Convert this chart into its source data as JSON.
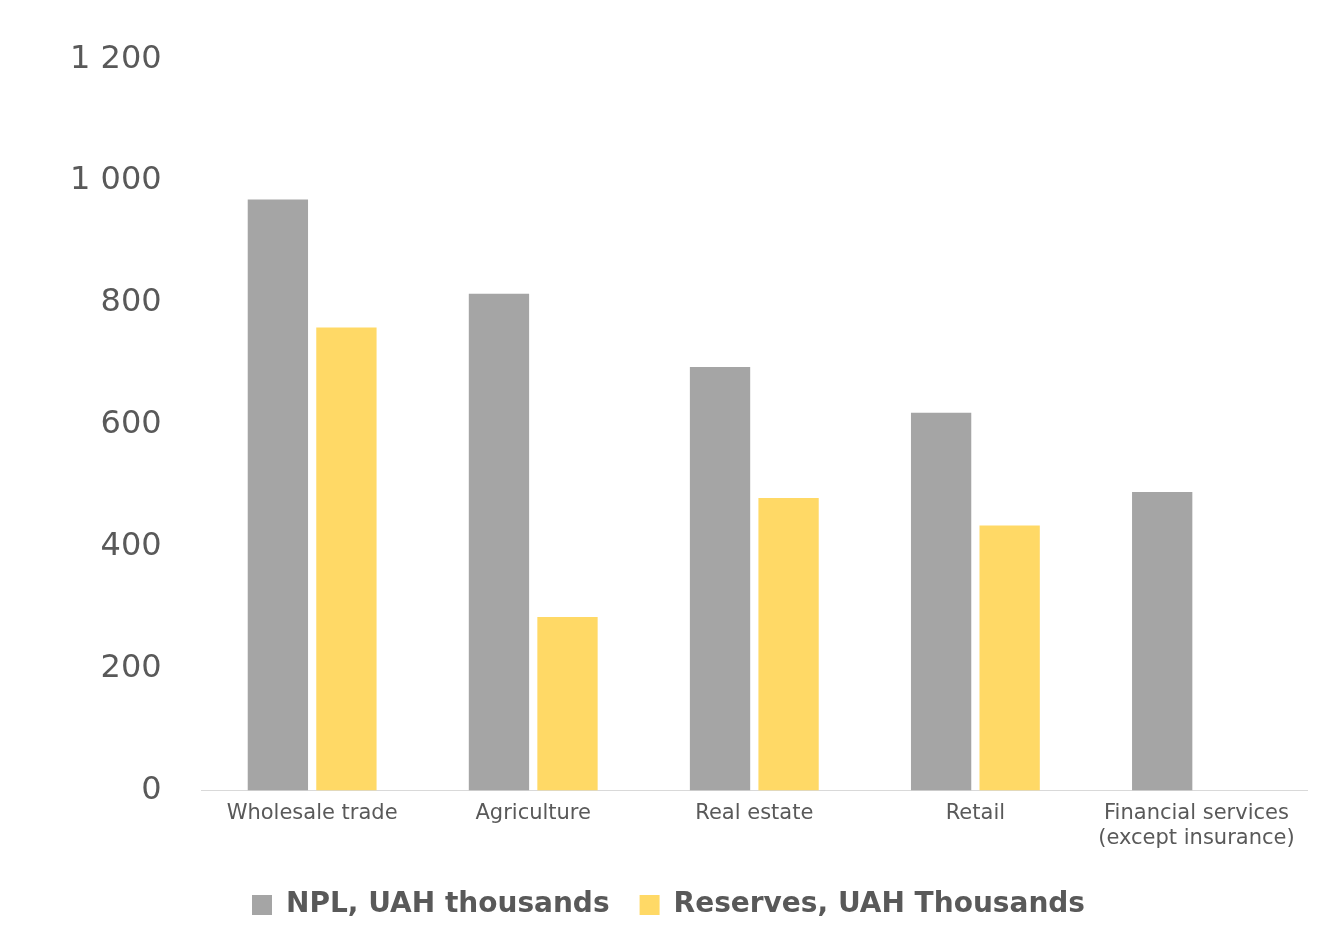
{
  "chart_data": {
    "type": "bar",
    "categories": [
      "Wholesale trade",
      "Agriculture",
      "Real estate",
      "Retail",
      "Financial services (except insurance)"
    ],
    "series": [
      {
        "name": "NPL, UAH thousands",
        "color": "#a5a5a5",
        "values": [
          970,
          815,
          695,
          620,
          490
        ]
      },
      {
        "name": "Reserves, UAH Thousands",
        "color": "#ffd966",
        "values": [
          760,
          285,
          480,
          435,
          null
        ]
      }
    ],
    "ylim": [
      0,
      1200
    ],
    "yticks": [
      0,
      200,
      400,
      600,
      800,
      {
        "value": 1000,
        "label": "1 000"
      },
      {
        "value": 1200,
        "label": "1 200"
      }
    ],
    "grid": false,
    "legend": "bottom"
  }
}
